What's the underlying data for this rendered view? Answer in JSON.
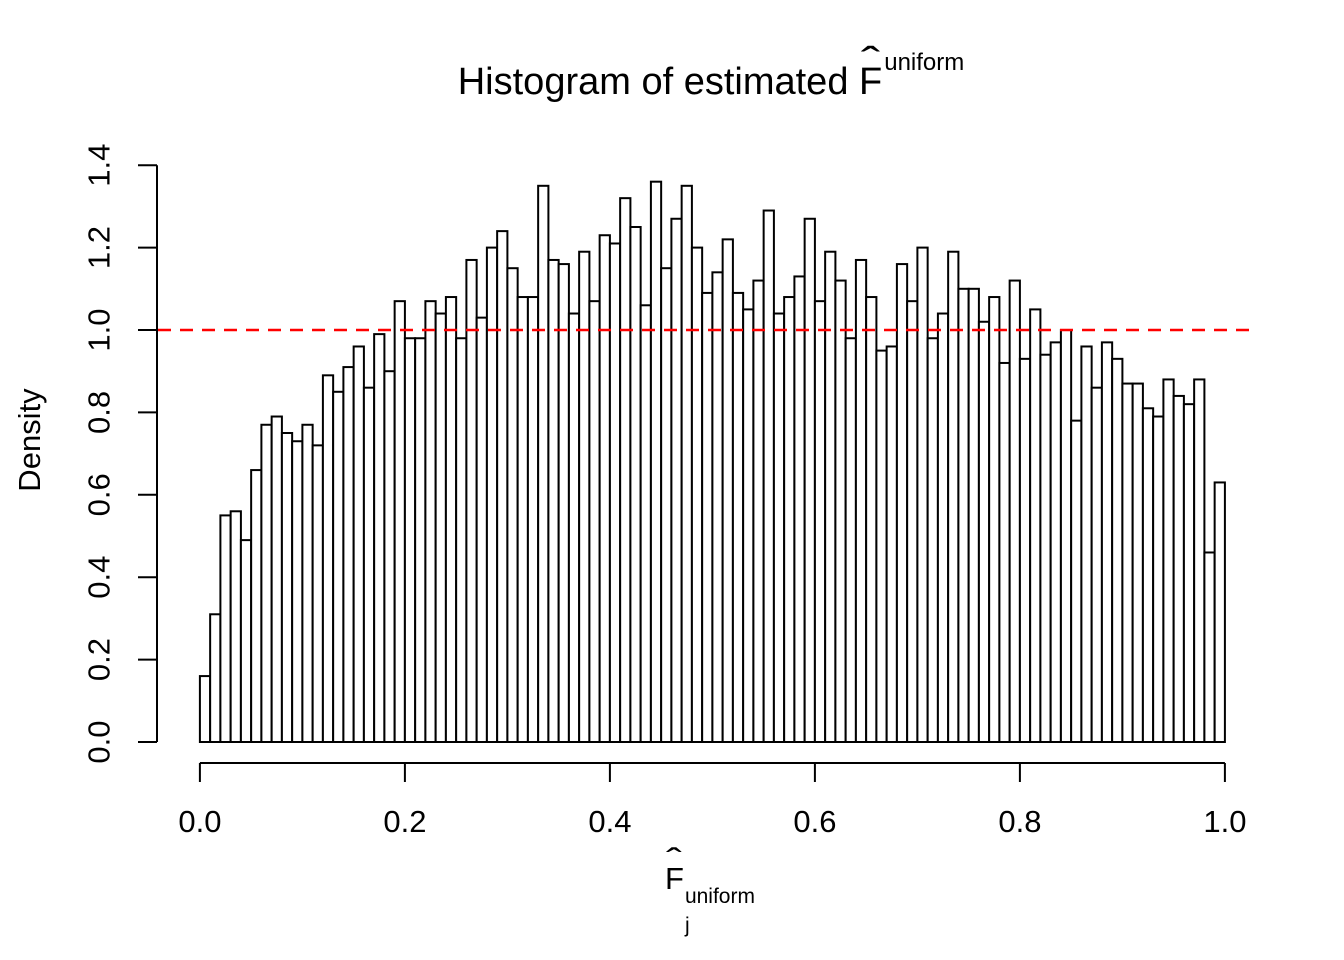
{
  "title": {
    "prefix": "Histogram of estimated ",
    "f": "F",
    "hat": "ˆ",
    "sup": "uniform"
  },
  "axes": {
    "x": {
      "title": {
        "f": "F",
        "hat": "ˆ",
        "sub": "j",
        "sup": "uniform"
      },
      "tick_labels": [
        "0.0",
        "0.2",
        "0.4",
        "0.6",
        "0.8",
        "1.0"
      ]
    },
    "y": {
      "label": "Density",
      "tick_labels": [
        "0.0",
        "0.2",
        "0.4",
        "0.6",
        "0.8",
        "1.0",
        "1.2",
        "1.4"
      ]
    }
  },
  "chart_data": {
    "type": "histogram",
    "title": "Histogram of estimated F^uniform",
    "xlabel": "F_j^uniform",
    "ylabel": "Density",
    "xlim": [
      0,
      1
    ],
    "ylim": [
      0,
      1.4
    ],
    "x_ticks": [
      0,
      0.2,
      0.4,
      0.6,
      0.8,
      1.0
    ],
    "x_tick_labels": [
      "0.0",
      "0.2",
      "0.4",
      "0.6",
      "0.8",
      "1.0"
    ],
    "y_ticks": [
      0,
      0.2,
      0.4,
      0.6,
      0.8,
      1.0,
      1.2,
      1.4
    ],
    "y_tick_labels": [
      "0.0",
      "0.2",
      "0.4",
      "0.6",
      "0.8",
      "1.0",
      "1.2",
      "1.4"
    ],
    "bin_start": 0,
    "bin_width": 0.01,
    "n_bins": 100,
    "bar_fill": "#FFFFFF",
    "bar_stroke": "#000000",
    "grid": false,
    "reference_line": {
      "y": 1.0,
      "color": "#FF0000",
      "style": "dashed"
    },
    "densities": [
      0.16,
      0.31,
      0.55,
      0.56,
      0.49,
      0.66,
      0.77,
      0.79,
      0.75,
      0.73,
      0.77,
      0.72,
      0.89,
      0.85,
      0.91,
      0.96,
      0.86,
      0.99,
      0.9,
      1.07,
      0.98,
      0.98,
      1.07,
      1.04,
      1.08,
      0.98,
      1.17,
      1.03,
      1.2,
      1.24,
      1.15,
      1.08,
      1.08,
      1.35,
      1.17,
      1.16,
      1.04,
      1.19,
      1.07,
      1.23,
      1.21,
      1.32,
      1.25,
      1.06,
      1.36,
      1.15,
      1.27,
      1.35,
      1.2,
      1.09,
      1.14,
      1.22,
      1.09,
      1.05,
      1.12,
      1.29,
      1.04,
      1.08,
      1.13,
      1.27,
      1.07,
      1.19,
      1.12,
      0.98,
      1.17,
      1.08,
      0.95,
      0.96,
      1.16,
      1.07,
      1.2,
      0.98,
      1.04,
      1.19,
      1.1,
      1.1,
      1.02,
      1.08,
      0.92,
      1.12,
      0.93,
      1.05,
      0.94,
      0.97,
      1.0,
      0.78,
      0.96,
      0.86,
      0.97,
      0.93,
      0.87,
      0.87,
      0.81,
      0.79,
      0.88,
      0.84,
      0.82,
      0.88,
      0.46,
      0.63
    ]
  }
}
